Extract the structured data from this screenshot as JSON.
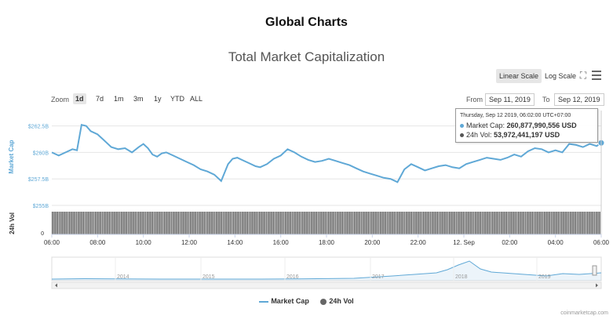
{
  "page_title": "Global Charts",
  "chart_title": "Total Market Capitalization",
  "toolbar": {
    "linear_scale": "Linear Scale",
    "log_scale": "Log Scale",
    "fullscreen_icon": "fullscreen-icon",
    "menu_icon": "hamburger-menu-icon"
  },
  "zoom": {
    "label": "Zoom",
    "buttons": [
      "1d",
      "7d",
      "1m",
      "3m",
      "1y",
      "YTD",
      "ALL"
    ],
    "active": "1d"
  },
  "range": {
    "from_label": "From",
    "from_value": "Sep 11, 2019",
    "to_label": "To",
    "to_value": "Sep 12, 2019"
  },
  "tooltip": {
    "date": "Thursday, Sep 12 2019, 06:02:00 UTC+07:00",
    "market_cap_label": "Market Cap:",
    "market_cap_value": "260,877,990,556 USD",
    "volume_label": "24h Vol:",
    "volume_value": "53,972,441,197 USD"
  },
  "legend": {
    "market_cap": "Market Cap",
    "volume": "24h Vol"
  },
  "credits": "coinmarketcap.com",
  "colors": {
    "market_cap": "#5fa8d6",
    "volume": "#555555",
    "grid": "#e6e6e6"
  },
  "chart_data": {
    "type": "line",
    "x_ticks": [
      "06:00",
      "08:00",
      "10:00",
      "12:00",
      "14:00",
      "16:00",
      "18:00",
      "20:00",
      "22:00",
      "12. Sep",
      "02:00",
      "04:00",
      "06:00"
    ],
    "y_axis_label": "Market Cap",
    "y_ticks": [
      "$262.5B",
      "$260B",
      "$257.5B",
      "$255B"
    ],
    "ylim": [
      255,
      263.8
    ],
    "volume_axis_label": "24h Vol",
    "volume_ticks": [
      "0"
    ],
    "series": [
      {
        "name": "Market Cap",
        "unit": "billion USD",
        "x_hours": [
          0,
          0.3,
          0.6,
          0.9,
          1.1,
          1.3,
          1.5,
          1.7,
          2.0,
          2.2,
          2.4,
          2.6,
          2.9,
          3.2,
          3.5,
          3.8,
          4.0,
          4.2,
          4.4,
          4.6,
          4.8,
          5.0,
          5.3,
          5.6,
          5.9,
          6.2,
          6.5,
          6.8,
          7.1,
          7.4,
          7.7,
          7.9,
          8.1,
          8.3,
          8.6,
          8.9,
          9.1,
          9.4,
          9.7,
          10.0,
          10.3,
          10.6,
          10.9,
          11.2,
          11.5,
          11.8,
          12.1,
          12.4,
          12.7,
          13.0,
          13.3,
          13.6,
          13.9,
          14.2,
          14.5,
          14.8,
          15.1,
          15.4,
          15.7,
          16.0,
          16.3,
          16.6,
          16.9,
          17.2,
          17.5,
          17.8,
          18.1,
          18.4,
          18.7,
          19.0,
          19.3,
          19.6,
          19.9,
          20.2,
          20.5,
          20.8,
          21.1,
          21.4,
          21.7,
          22.0,
          22.3,
          22.6,
          22.9,
          23.2,
          23.5,
          23.8,
          24.0,
          24.0
        ],
        "values": [
          260.0,
          259.7,
          260.0,
          260.3,
          260.2,
          262.6,
          262.5,
          262.0,
          261.7,
          261.3,
          260.9,
          260.5,
          260.3,
          260.4,
          260.0,
          260.5,
          260.8,
          260.4,
          259.8,
          259.6,
          259.9,
          260.0,
          259.7,
          259.4,
          259.1,
          258.8,
          258.4,
          258.2,
          257.9,
          257.3,
          258.9,
          259.4,
          259.5,
          259.3,
          259.0,
          258.7,
          258.6,
          258.9,
          259.4,
          259.7,
          260.3,
          260.0,
          259.6,
          259.3,
          259.1,
          259.2,
          259.4,
          259.2,
          259.0,
          258.8,
          258.5,
          258.2,
          258.0,
          257.8,
          257.6,
          257.5,
          257.2,
          258.4,
          258.9,
          258.6,
          258.3,
          258.5,
          258.7,
          258.8,
          258.6,
          258.5,
          258.9,
          259.1,
          259.3,
          259.5,
          259.4,
          259.3,
          259.5,
          259.8,
          259.6,
          260.1,
          260.4,
          260.3,
          260.0,
          260.2,
          260.0,
          260.8,
          260.7,
          260.5,
          260.8,
          260.6,
          260.9,
          260.9
        ]
      },
      {
        "name": "24h Vol",
        "type": "bar",
        "values": "uniform"
      }
    ],
    "navigator": {
      "x_labels": [
        "2014",
        "2015",
        "2016",
        "2017",
        "2018",
        "2019"
      ]
    }
  }
}
